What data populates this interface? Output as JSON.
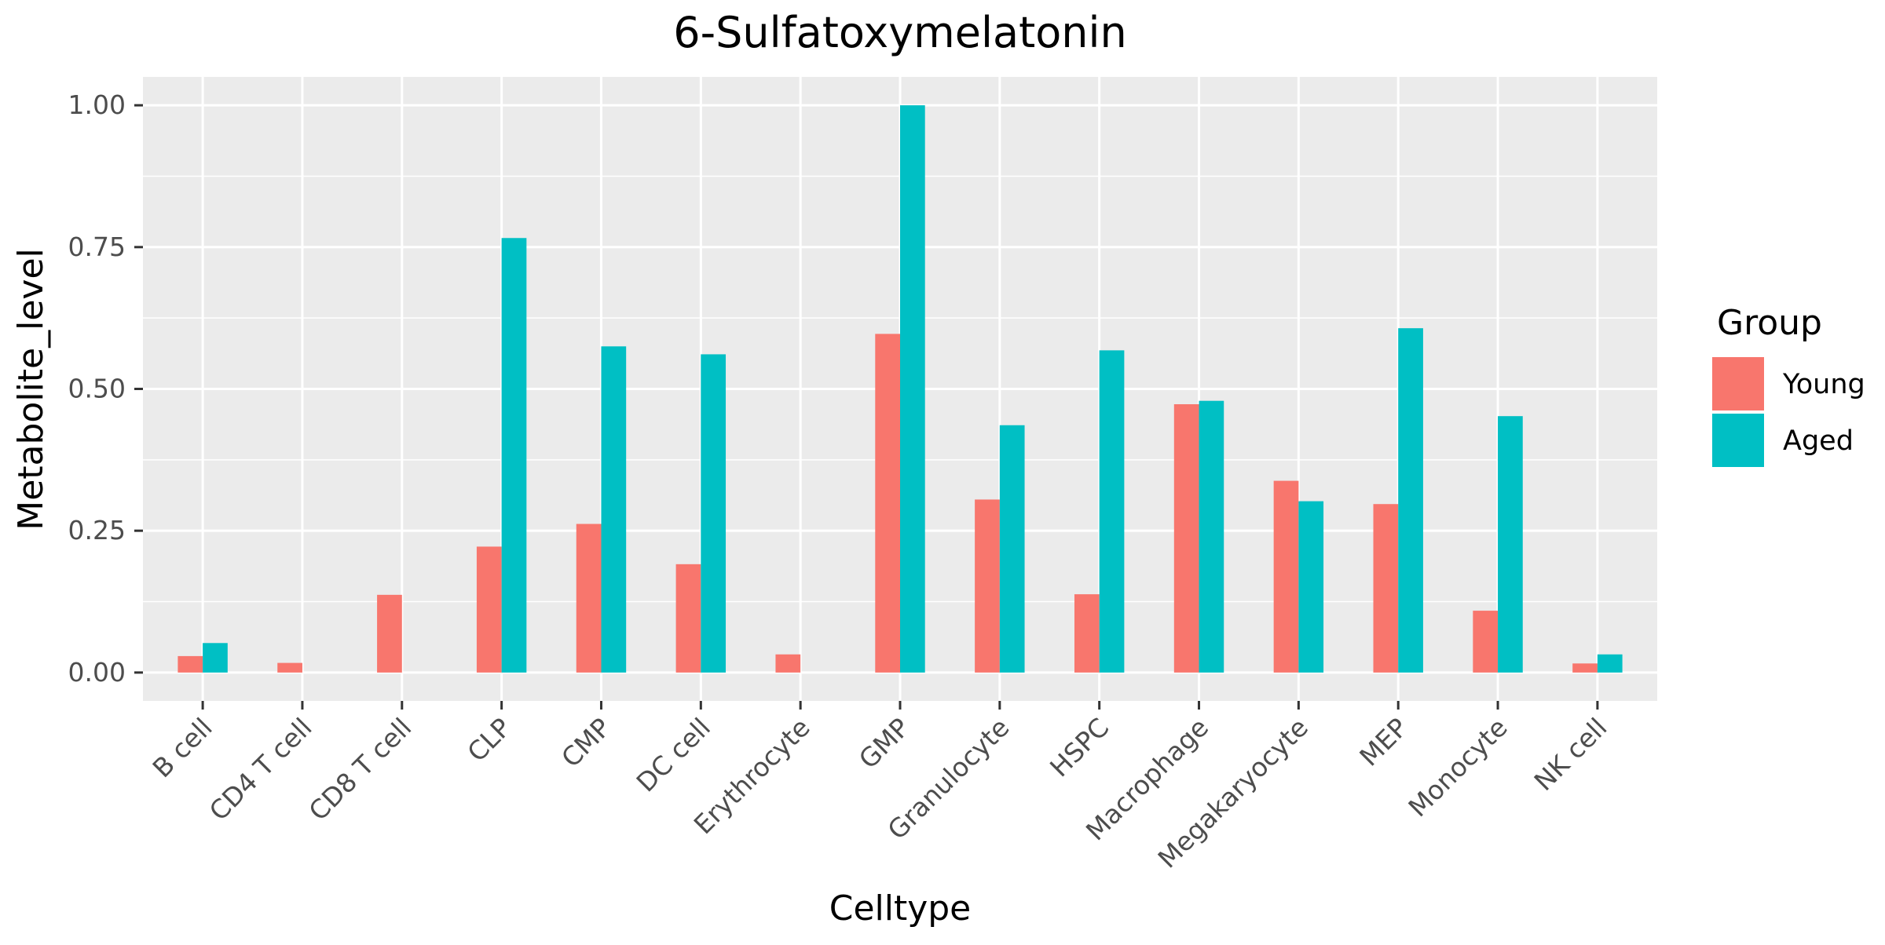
{
  "chart_data": {
    "type": "bar",
    "title": "6-Sulfatoxymelatonin",
    "xlabel": "Celltype",
    "ylabel": "Metabolite_level",
    "categories": [
      "B cell",
      "CD4 T cell",
      "CD8 T cell",
      "CLP",
      "CMP",
      "DC cell",
      "Erythrocyte",
      "GMP",
      "Granulocyte",
      "HSPC",
      "Macrophage",
      "Megakaryocyte",
      "MEP",
      "Monocyte",
      "NK cell"
    ],
    "series": [
      {
        "name": "Young",
        "color": "#F8766D",
        "values": [
          0.029,
          0.017,
          0.137,
          0.222,
          0.262,
          0.191,
          0.032,
          0.597,
          0.305,
          0.138,
          0.473,
          0.338,
          0.297,
          0.109,
          0.016
        ]
      },
      {
        "name": "Aged",
        "color": "#00BFC4",
        "values": [
          0.052,
          null,
          null,
          0.766,
          0.575,
          0.561,
          null,
          1.0,
          0.436,
          0.568,
          0.479,
          0.302,
          0.607,
          0.452,
          0.032
        ]
      }
    ],
    "ylim": [
      -0.05,
      1.05
    ],
    "yticks": [
      0,
      0.25,
      0.5,
      0.75,
      1.0
    ],
    "ytick_labels": [
      "0.00",
      "0.25",
      "0.50",
      "0.75",
      "1.00"
    ],
    "legend": {
      "title": "Group",
      "position": "right"
    },
    "grid": true,
    "panel_color": "#EBEBEB",
    "grid_color": "#FFFFFF"
  }
}
